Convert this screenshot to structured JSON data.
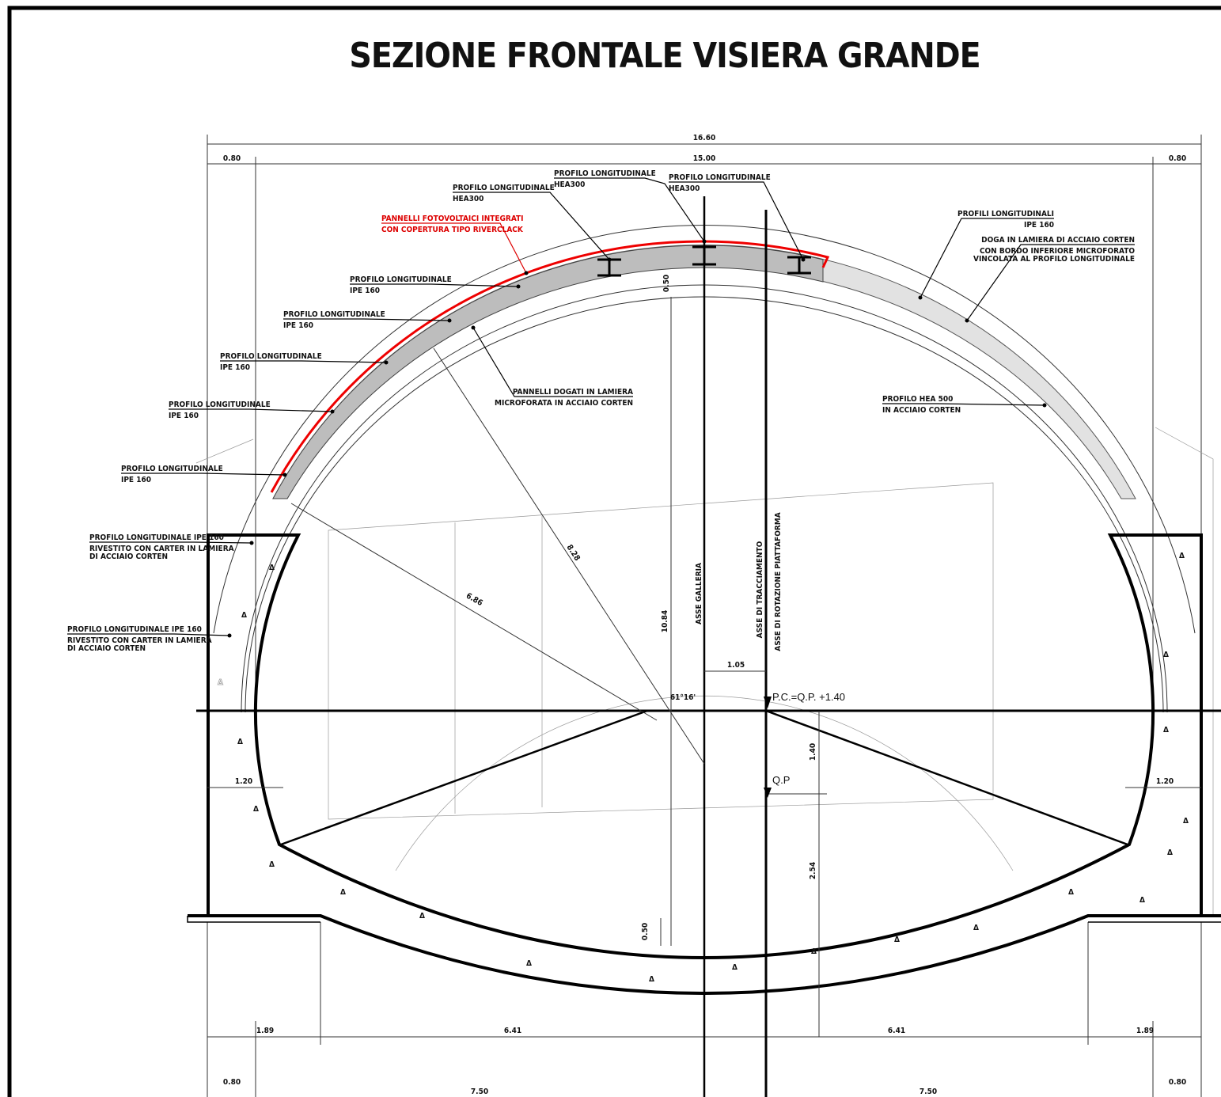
{
  "title": "SEZIONE FRONTALE VISIERA GRANDE",
  "dimensions": {
    "overall_width": "16.60",
    "inner_width": "15.00",
    "left_margin": "0.80",
    "right_margin": "0.80",
    "crown_thickness": "0.50",
    "height": "10.84",
    "radius_large": "8.28",
    "radius_small": "6.86",
    "axis_offset": "1.05",
    "angle": "61°16'",
    "wall_left": "1.20",
    "wall_right": "1.20",
    "level_difference": "1.40",
    "invert_depth": "2.54",
    "invert_thickness": "0.50",
    "bottom_left_edge": "1.89",
    "bottom_left": "6.41",
    "bottom_right": "6.41",
    "bottom_right_edge": "1.89",
    "base_left_margin": "0.80",
    "base_left": "7.50",
    "base_right": "7.50",
    "base_right_margin": "0.80"
  },
  "axes": {
    "tunnel_axis": "ASSE GALLERIA",
    "layout_axis": "ASSE DI TRACCIAMENTO",
    "rotation_axis": "ASSE DI ROTAZIONE PIATTAFORMA"
  },
  "levels": {
    "ground": "P.C.=Q.P. +1.40",
    "platform": "Q.P"
  },
  "annotations": [
    {
      "lines": [
        "PROFILO LONGITUDINALE",
        "HEA300"
      ]
    },
    {
      "lines": [
        "PROFILO LONGITUDINALE",
        "HEA300"
      ]
    },
    {
      "lines": [
        "PROFILO LONGITUDINALE",
        "HEA300"
      ]
    },
    {
      "lines": [
        "PANNELLI FOTOVOLTAICI INTEGRATI",
        "CON COPERTURA TIPO RIVERCLACK"
      ]
    },
    {
      "lines": [
        "PROFILO LONGITUDINALE",
        "IPE 160"
      ]
    },
    {
      "lines": [
        "PROFILO LONGITUDINALE",
        "IPE 160"
      ]
    },
    {
      "lines": [
        "PROFILO LONGITUDINALE",
        "IPE 160"
      ]
    },
    {
      "lines": [
        "PROFILO LONGITUDINALE",
        "IPE 160"
      ]
    },
    {
      "lines": [
        "PROFILO LONGITUDINALE",
        "IPE 160"
      ]
    },
    {
      "lines": [
        "PROFILO LONGITUDINALE IPE 160",
        "RIVESTITO CON CARTER IN LAMIERA",
        "DI ACCIAIO CORTEN"
      ]
    },
    {
      "lines": [
        "PROFILO LONGITUDINALE IPE 160",
        "RIVESTITO CON CARTER IN LAMIERA",
        "DI ACCIAIO CORTEN"
      ]
    },
    {
      "lines": [
        "PANNELLI DOGATI IN LAMIERA",
        "MICROFORATA IN ACCIAIO CORTEN"
      ]
    },
    {
      "lines": [
        "PROFILI LONGITUDINALI",
        "IPE 160"
      ]
    },
    {
      "lines": [
        "DOGA IN LAMIERA DI ACCIAIO CORTEN",
        "CON BORDO INFERIORE MICROFORATO",
        "VINCOLATA AL PROFILO LONGITUDINALE"
      ]
    },
    {
      "lines": [
        "PROFILO HEA 500",
        "IN ACCIAIO CORTEN"
      ]
    }
  ]
}
